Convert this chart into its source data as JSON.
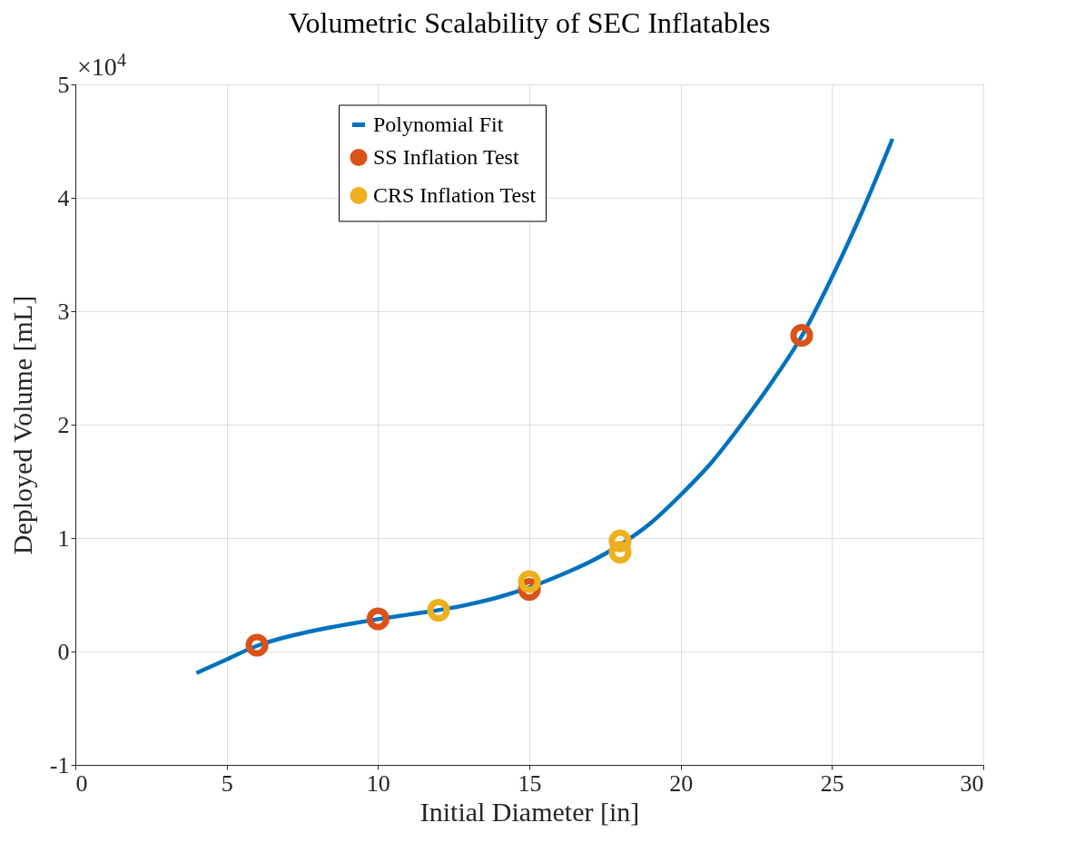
{
  "chart_data": {
    "type": "scatter",
    "title": "Volumetric Scalability of SEC Inflatables",
    "xlabel": "Initial Diameter [in]",
    "ylabel": "Deployed Volume [mL]",
    "annotations": [
      "×10$^{4}$"
    ],
    "xlim": [
      0,
      30
    ],
    "xticks": [
      0,
      5,
      10,
      15,
      20,
      25,
      30
    ],
    "ylim": [
      -1,
      5
    ],
    "yticks": [
      -1,
      0,
      1,
      2,
      3,
      4,
      5
    ],
    "grid": true,
    "legend": "top",
    "marker": "circle",
    "series": [
      {
        "name": "Polynomial Fit",
        "type": "line",
        "color": "#0072bd",
        "line_style": "solid",
        "marker": "none",
        "x": [
          4,
          5,
          6,
          7,
          8,
          9,
          10,
          11,
          12,
          13,
          14,
          15,
          16,
          17,
          18,
          19,
          20,
          21,
          22,
          23,
          24,
          25,
          26,
          27
        ],
        "values": [
          -0.19,
          -0.07,
          0.05,
          0.13,
          0.19,
          0.24,
          0.285,
          0.325,
          0.365,
          0.415,
          0.48,
          0.565,
          0.67,
          0.79,
          0.94,
          1.13,
          1.38,
          1.66,
          2.0,
          2.37,
          2.78,
          3.3,
          3.88,
          4.52
        ]
      },
      {
        "name": "SS Inflation Test",
        "color": "#d95319",
        "x": [
          6,
          10,
          15,
          24
        ],
        "values": [
          0.056,
          0.288,
          0.548,
          2.787
        ]
      },
      {
        "name": "CRS Inflation Test",
        "color": "#edb120",
        "x": [
          12,
          15,
          18,
          18
        ],
        "values": [
          0.364,
          0.616,
          0.975,
          0.876
        ]
      }
    ]
  }
}
